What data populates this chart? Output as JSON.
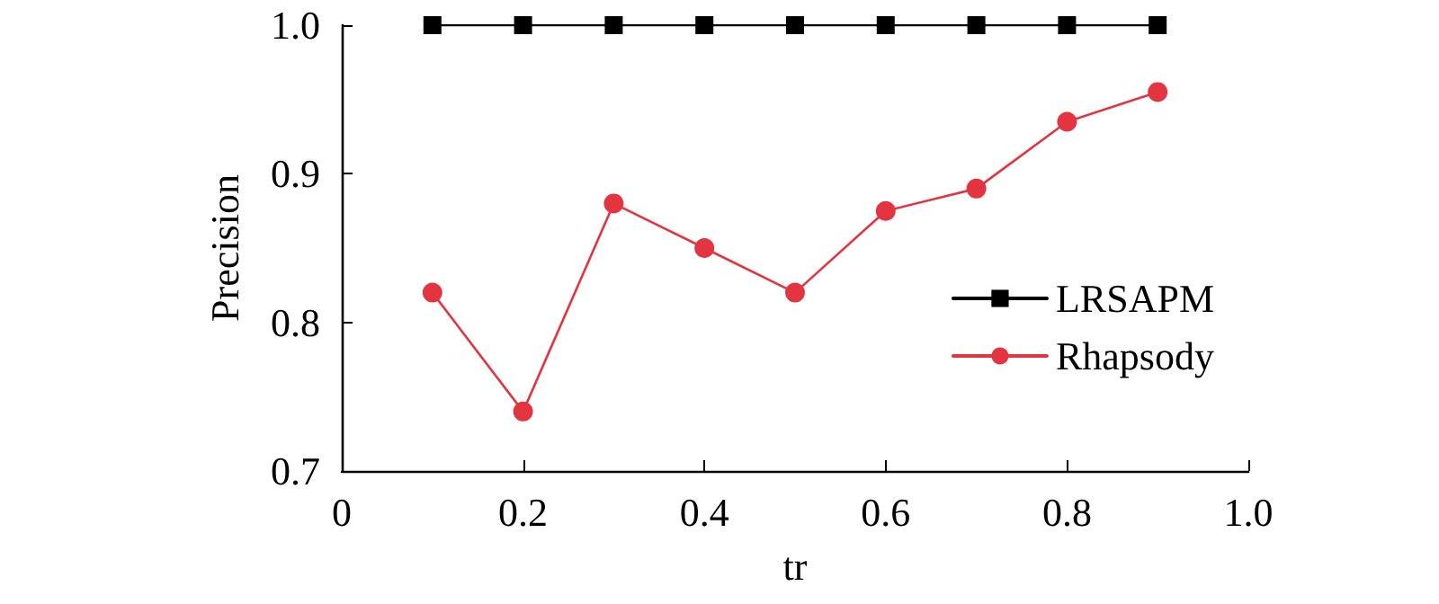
{
  "chart_data": {
    "type": "line",
    "xlabel": "tr",
    "ylabel": "Precision",
    "x": [
      0.1,
      0.2,
      0.3,
      0.4,
      0.5,
      0.6,
      0.7,
      0.8,
      0.9
    ],
    "series": [
      {
        "name": "LRSAPM",
        "color": "#000000",
        "marker": "square",
        "values": [
          1,
          1,
          1,
          1,
          1,
          1,
          1,
          1,
          1
        ]
      },
      {
        "name": "Rhapsody",
        "color": "#e2353f",
        "marker": "circle",
        "values": [
          0.82,
          0.74,
          0.88,
          0.85,
          0.82,
          0.875,
          0.89,
          0.935,
          0.955
        ]
      }
    ],
    "xlim": [
      0,
      1
    ],
    "xticks": [
      0,
      0.2,
      0.4,
      0.6,
      0.8,
      {
        "value": 1,
        "label": "1.0"
      }
    ],
    "ylim": [
      0.7,
      1
    ],
    "yticks": [
      0.7,
      0.8,
      0.9,
      {
        "value": 1,
        "label": "1.0"
      }
    ],
    "grid": false,
    "legend": "right",
    "line_style": "solid"
  }
}
